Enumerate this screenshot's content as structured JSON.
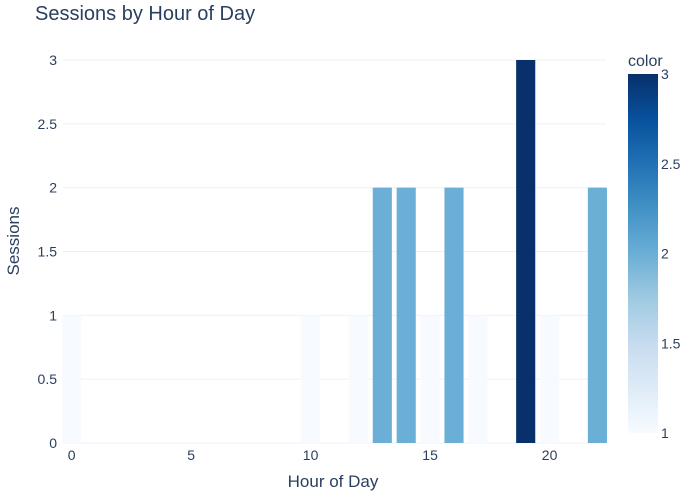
{
  "chart_data": {
    "type": "bar",
    "title": "Sessions by Hour of Day",
    "xlabel": "Hour of Day",
    "ylabel": "Sessions",
    "x": [
      0,
      10,
      12,
      13,
      14,
      15,
      16,
      17,
      19,
      20,
      22
    ],
    "values": [
      1,
      1,
      1,
      2,
      2,
      1,
      2,
      1,
      3,
      1,
      2
    ],
    "color_values": [
      1,
      1,
      1,
      2,
      2,
      1,
      2,
      1,
      3,
      1,
      2
    ],
    "xlim": [
      -0.36,
      22.36
    ],
    "ylim": [
      0,
      3
    ],
    "x_ticks": [
      0,
      5,
      10,
      15,
      20
    ],
    "y_ticks": [
      0,
      0.5,
      1,
      1.5,
      2,
      2.5,
      3
    ],
    "grid": true,
    "colorbar": {
      "title": "color",
      "range": [
        1,
        3
      ],
      "ticks": [
        1,
        1.5,
        2,
        2.5,
        3
      ],
      "colorscale": [
        "#f7fbff",
        "#deebf7",
        "#c6dbef",
        "#9ecae1",
        "#6baed6",
        "#4292c6",
        "#2171b5",
        "#08519c",
        "#08306b"
      ]
    }
  }
}
